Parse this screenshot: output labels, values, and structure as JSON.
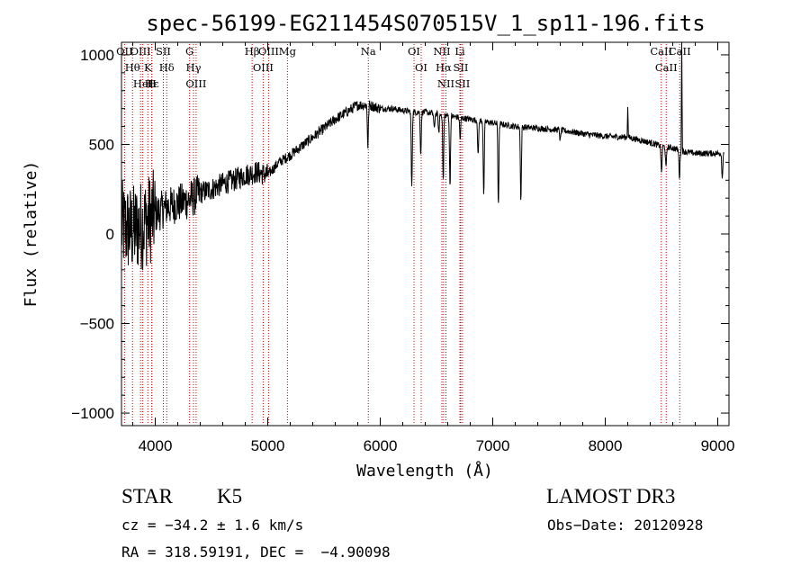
{
  "chart_data": {
    "type": "line",
    "title": "spec-56199-EG211454S070515V_1_sp11-196.fits",
    "xlabel": "Wavelength (Å)",
    "ylabel": "Flux (relative)",
    "xlim": [
      3700,
      9100
    ],
    "ylim": [
      -1070,
      1070
    ],
    "x_ticks": [
      4000,
      5000,
      6000,
      7000,
      8000,
      9000
    ],
    "y_ticks": [
      -1000,
      -500,
      0,
      500,
      1000
    ],
    "continuum": [
      [
        3700,
        40
      ],
      [
        3800,
        20
      ],
      [
        3900,
        60
      ],
      [
        4000,
        110
      ],
      [
        4100,
        150
      ],
      [
        4200,
        170
      ],
      [
        4300,
        190
      ],
      [
        4400,
        230
      ],
      [
        4500,
        250
      ],
      [
        4600,
        280
      ],
      [
        4700,
        300
      ],
      [
        4800,
        330
      ],
      [
        4900,
        345
      ],
      [
        5000,
        330
      ],
      [
        5100,
        400
      ],
      [
        5200,
        440
      ],
      [
        5300,
        490
      ],
      [
        5400,
        540
      ],
      [
        5500,
        590
      ],
      [
        5600,
        640
      ],
      [
        5700,
        680
      ],
      [
        5800,
        720
      ],
      [
        5900,
        720
      ],
      [
        6000,
        700
      ],
      [
        6100,
        700
      ],
      [
        6200,
        690
      ],
      [
        6300,
        680
      ],
      [
        6400,
        680
      ],
      [
        6500,
        670
      ],
      [
        6600,
        660
      ],
      [
        6700,
        650
      ],
      [
        6800,
        640
      ],
      [
        6900,
        630
      ],
      [
        7000,
        620
      ],
      [
        7200,
        600
      ],
      [
        7400,
        590
      ],
      [
        7600,
        580
      ],
      [
        7800,
        560
      ],
      [
        8000,
        545
      ],
      [
        8200,
        540
      ],
      [
        8400,
        510
      ],
      [
        8500,
        490
      ],
      [
        8600,
        480
      ],
      [
        8700,
        460
      ],
      [
        8800,
        450
      ],
      [
        8900,
        450
      ],
      [
        9000,
        450
      ],
      [
        9060,
        460
      ]
    ],
    "absorption_features": [
      [
        5890,
        -230
      ],
      [
        6280,
        -430
      ],
      [
        6360,
        -240
      ],
      [
        6480,
        -90
      ],
      [
        6520,
        -110
      ],
      [
        6560,
        -370
      ],
      [
        6620,
        -390
      ],
      [
        6710,
        -120
      ],
      [
        6870,
        -200
      ],
      [
        6920,
        -420
      ],
      [
        7050,
        -450
      ],
      [
        7250,
        -420
      ],
      [
        7600,
        -60
      ],
      [
        8500,
        -150
      ],
      [
        8540,
        -120
      ],
      [
        8660,
        -150
      ],
      [
        9040,
        -150
      ]
    ],
    "emission_features": [
      [
        8200,
        180
      ],
      [
        8680,
        600
      ]
    ],
    "spectral_lines": [
      {
        "label": "Hθ",
        "wavelength": 3798
      },
      {
        "label": "OII",
        "wavelength": 3727
      },
      {
        "label": "OIII",
        "wavelength": 3869
      },
      {
        "label": "K",
        "wavelength": 3934
      },
      {
        "label": "HeI",
        "wavelength": 3889
      },
      {
        "label": "Hε",
        "wavelength": 3970
      },
      {
        "label": "H",
        "wavelength": 3969
      },
      {
        "label": "Hδ",
        "wavelength": 4102
      },
      {
        "label": "SII",
        "wavelength": 4072
      },
      {
        "label": "OIII",
        "wavelength": 4363
      },
      {
        "label": "Hγ",
        "wavelength": 4340
      },
      {
        "label": "G",
        "wavelength": 4305
      },
      {
        "label": "OIII",
        "wavelength": 5007
      },
      {
        "label": "OIII",
        "wavelength": 4959
      },
      {
        "label": "Hβ",
        "wavelength": 4861
      },
      {
        "label": "Mg",
        "wavelength": 5175
      },
      {
        "label": "Na",
        "wavelength": 5894
      },
      {
        "label": "OI",
        "wavelength": 6300
      },
      {
        "label": "OI",
        "wavelength": 6364
      },
      {
        "label": "Hα",
        "wavelength": 6563
      },
      {
        "label": "SII",
        "wavelength": 6716
      },
      {
        "label": "NII",
        "wavelength": 6548
      },
      {
        "label": "NII",
        "wavelength": 6584
      },
      {
        "label": "Li",
        "wavelength": 6708
      },
      {
        "label": "SII",
        "wavelength": 6731
      },
      {
        "label": "CaII",
        "wavelength": 8498
      },
      {
        "label": "CaII",
        "wavelength": 8542
      },
      {
        "label": "CaII",
        "wavelength": 8662
      }
    ]
  },
  "info": {
    "class": "STAR",
    "subclass": "K5",
    "survey": "LAMOST DR3",
    "redshift": "cz = −34.2 ± 1.6 km/s",
    "obs_date": "Obs−Date: 20120928",
    "coords": "RA = 318.59191, DEC =  −4.90098"
  },
  "colors": {
    "line": "#000000",
    "marker": "#c00000"
  }
}
